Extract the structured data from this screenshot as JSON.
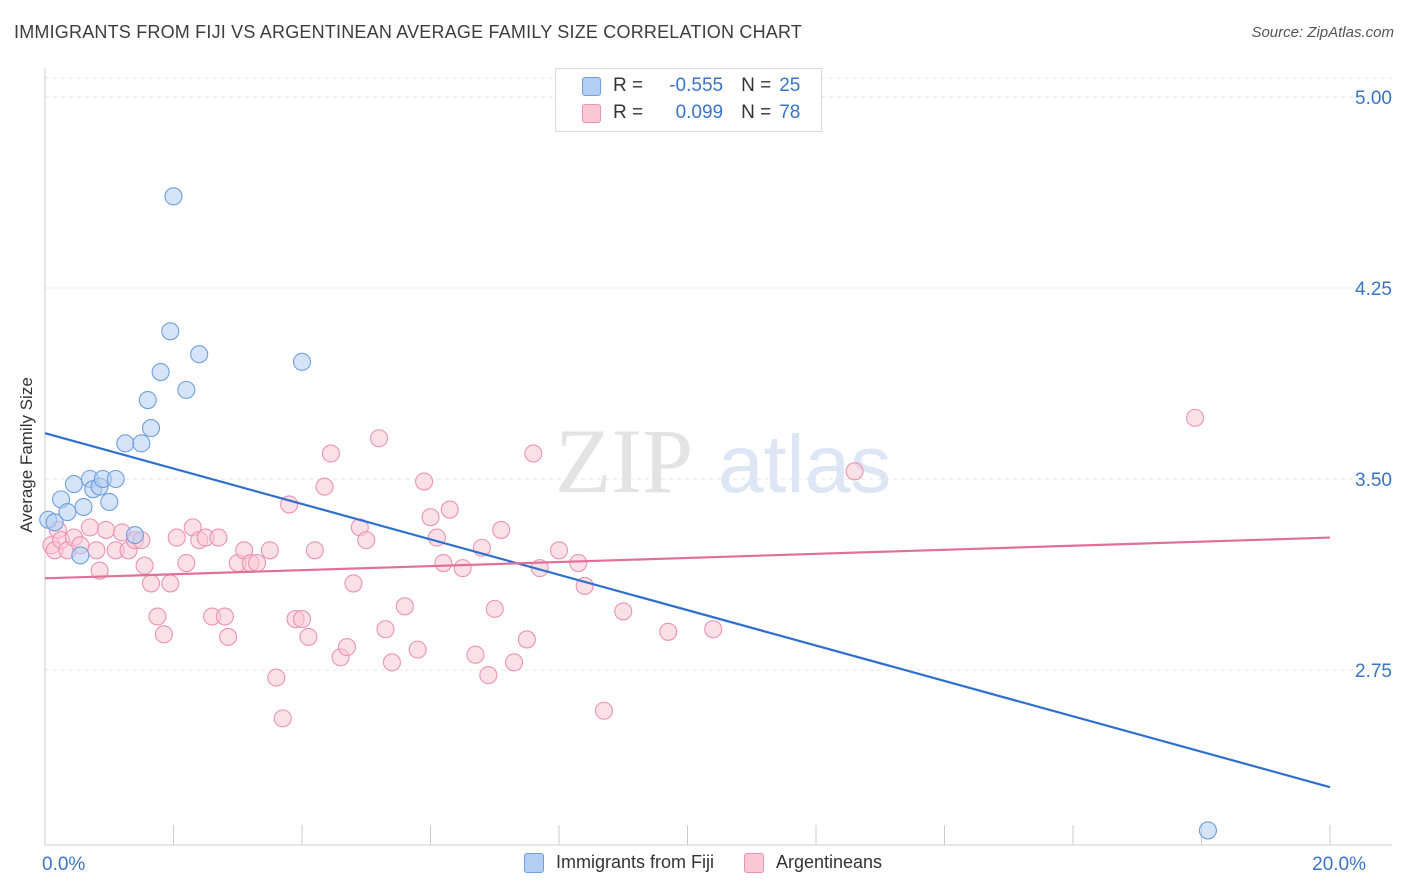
{
  "title": "IMMIGRANTS FROM FIJI VS ARGENTINEAN AVERAGE FAMILY SIZE CORRELATION CHART",
  "source": "Source: ZipAtlas.com",
  "watermark": {
    "zip": "ZIP",
    "atlas": "atlas"
  },
  "colors": {
    "fiji_fill": "#b3cdf3",
    "fiji_stroke": "#6f9fe0",
    "fiji_line": "#2f6fd0",
    "arg_fill": "#f9c7d6",
    "arg_stroke": "#ec93b0",
    "arg_line": "#e0709a",
    "tick_label": "#3a74c9",
    "grid": "#e6e6e6"
  },
  "legend_top": {
    "rows": [
      {
        "r_label": "R =",
        "r_value": "-0.555",
        "n_label": "N =",
        "n_value": "25"
      },
      {
        "r_label": "R =",
        "r_value": "0.099",
        "n_label": "N =",
        "n_value": "78"
      }
    ]
  },
  "chart_data": {
    "type": "scatter",
    "xlabel": "",
    "ylabel": "Average Family Size",
    "xlim": [
      0,
      20
    ],
    "ylim": [
      2.0,
      5.15
    ],
    "x_tick_labels": [
      {
        "value": 0,
        "label": "0.0%"
      },
      {
        "value": 20,
        "label": "20.0%"
      }
    ],
    "y_ticks": [
      {
        "value": 2.75,
        "label": "2.75"
      },
      {
        "value": 3.5,
        "label": "3.50"
      },
      {
        "value": 4.25,
        "label": "4.25"
      },
      {
        "value": 5.0,
        "label": "5.00"
      }
    ],
    "x_minor_ticks": [
      0,
      2,
      4,
      6,
      8,
      10,
      12,
      14,
      16,
      18,
      20
    ],
    "grid": true,
    "legend_position": "bottom-center",
    "series": [
      {
        "name": "Immigrants from Fiji",
        "points": [
          [
            0.05,
            3.34
          ],
          [
            0.15,
            3.33
          ],
          [
            0.25,
            3.42
          ],
          [
            0.35,
            3.37
          ],
          [
            0.45,
            3.48
          ],
          [
            0.55,
            3.2
          ],
          [
            0.6,
            3.39
          ],
          [
            0.7,
            3.5
          ],
          [
            0.75,
            3.46
          ],
          [
            0.85,
            3.47
          ],
          [
            0.9,
            3.5
          ],
          [
            1.0,
            3.41
          ],
          [
            1.1,
            3.5
          ],
          [
            1.25,
            3.64
          ],
          [
            1.4,
            3.28
          ],
          [
            1.5,
            3.64
          ],
          [
            1.6,
            3.81
          ],
          [
            1.65,
            3.7
          ],
          [
            1.8,
            3.92
          ],
          [
            1.95,
            4.08
          ],
          [
            2.0,
            4.61
          ],
          [
            2.2,
            3.85
          ],
          [
            2.4,
            3.99
          ],
          [
            4.0,
            3.96
          ],
          [
            18.1,
            2.12
          ]
        ],
        "trend": [
          [
            0,
            3.68
          ],
          [
            20,
            2.29
          ]
        ]
      },
      {
        "name": "Argentineans",
        "points": [
          [
            0.1,
            3.24
          ],
          [
            0.15,
            3.22
          ],
          [
            0.2,
            3.3
          ],
          [
            0.25,
            3.26
          ],
          [
            0.35,
            3.22
          ],
          [
            0.45,
            3.27
          ],
          [
            0.55,
            3.24
          ],
          [
            0.7,
            3.31
          ],
          [
            0.8,
            3.22
          ],
          [
            0.85,
            3.14
          ],
          [
            0.95,
            3.3
          ],
          [
            1.1,
            3.22
          ],
          [
            1.2,
            3.29
          ],
          [
            1.3,
            3.22
          ],
          [
            1.4,
            3.26
          ],
          [
            1.5,
            3.26
          ],
          [
            1.55,
            3.16
          ],
          [
            1.65,
            3.09
          ],
          [
            1.75,
            2.96
          ],
          [
            1.85,
            2.89
          ],
          [
            1.95,
            3.09
          ],
          [
            2.05,
            3.27
          ],
          [
            2.2,
            3.17
          ],
          [
            2.3,
            3.31
          ],
          [
            2.4,
            3.26
          ],
          [
            2.5,
            3.27
          ],
          [
            2.6,
            2.96
          ],
          [
            2.7,
            3.27
          ],
          [
            2.8,
            2.96
          ],
          [
            2.85,
            2.88
          ],
          [
            3.0,
            3.17
          ],
          [
            3.1,
            3.22
          ],
          [
            3.2,
            3.17
          ],
          [
            3.3,
            3.17
          ],
          [
            3.5,
            3.22
          ],
          [
            3.6,
            2.72
          ],
          [
            3.7,
            2.56
          ],
          [
            3.8,
            3.4
          ],
          [
            3.9,
            2.95
          ],
          [
            4.0,
            2.95
          ],
          [
            4.1,
            2.88
          ],
          [
            4.2,
            3.22
          ],
          [
            4.35,
            3.47
          ],
          [
            4.45,
            3.6
          ],
          [
            4.6,
            2.8
          ],
          [
            4.7,
            2.84
          ],
          [
            4.8,
            3.09
          ],
          [
            4.9,
            3.31
          ],
          [
            5.0,
            3.26
          ],
          [
            5.2,
            3.66
          ],
          [
            5.3,
            2.91
          ],
          [
            5.4,
            2.78
          ],
          [
            5.6,
            3.0
          ],
          [
            5.8,
            2.83
          ],
          [
            5.9,
            3.49
          ],
          [
            6.0,
            3.35
          ],
          [
            6.1,
            3.27
          ],
          [
            6.2,
            3.17
          ],
          [
            6.3,
            3.38
          ],
          [
            6.5,
            3.15
          ],
          [
            6.7,
            2.81
          ],
          [
            6.8,
            3.23
          ],
          [
            6.9,
            2.73
          ],
          [
            7.0,
            2.99
          ],
          [
            7.1,
            3.3
          ],
          [
            7.3,
            2.78
          ],
          [
            7.5,
            2.87
          ],
          [
            7.6,
            3.6
          ],
          [
            7.7,
            3.15
          ],
          [
            8.0,
            3.22
          ],
          [
            8.3,
            3.17
          ],
          [
            8.4,
            3.08
          ],
          [
            8.7,
            2.59
          ],
          [
            9.0,
            2.98
          ],
          [
            9.7,
            2.9
          ],
          [
            10.4,
            2.91
          ],
          [
            12.6,
            3.53
          ],
          [
            17.9,
            3.74
          ]
        ],
        "trend": [
          [
            0,
            3.11
          ],
          [
            20,
            3.27
          ]
        ]
      }
    ]
  }
}
